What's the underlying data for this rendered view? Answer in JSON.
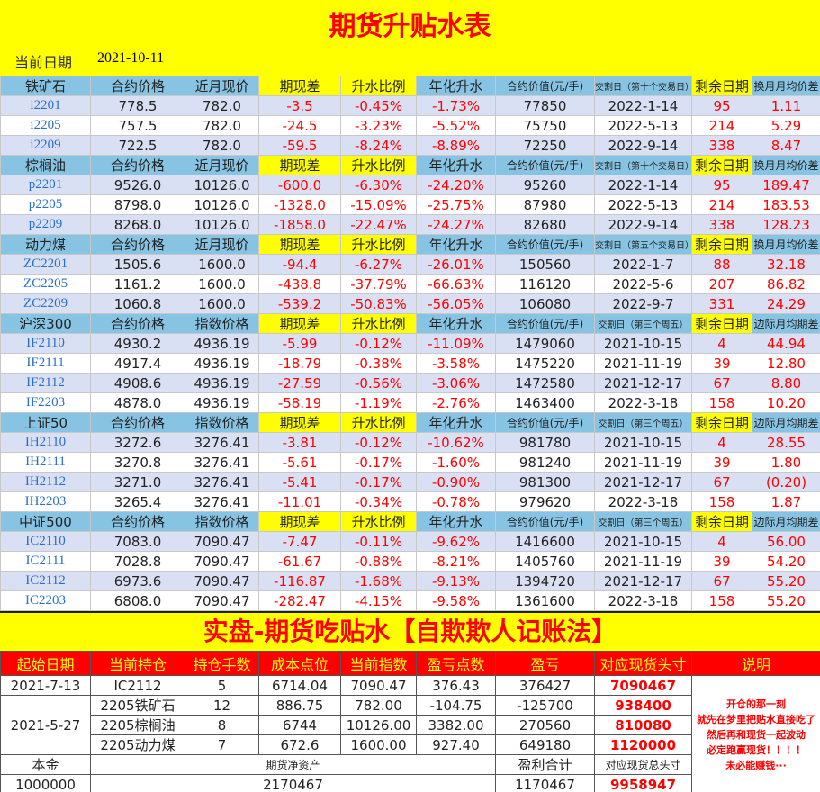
{
  "title": "期货升贴水表",
  "current_date_label": "当前日期",
  "current_date": "2021-10-11",
  "colors": {
    "header": "#87c4e4",
    "highlight": "#ffff00",
    "row_alt": "#dae0f3",
    "negative": "#ff0000",
    "code": "#2a6fc9"
  },
  "sections": [
    {
      "headers": [
        "铁矿石",
        "合约价格",
        "近月现价",
        "期现差",
        "升水比例",
        "年化升水",
        "合约价值(元/手)",
        "交割日（第十个交易日）",
        "剩余日期",
        "换月月均价差"
      ],
      "rows": [
        [
          "i2201",
          "778.5",
          "782.0",
          "-3.5",
          "-0.45%",
          "-1.73%",
          "77850",
          "2022-1-14",
          "95",
          "1.11"
        ],
        [
          "i2205",
          "757.5",
          "782.0",
          "-24.5",
          "-3.23%",
          "-5.52%",
          "75750",
          "2022-5-13",
          "214",
          "5.29"
        ],
        [
          "i2209",
          "722.5",
          "782.0",
          "-59.5",
          "-8.24%",
          "-8.89%",
          "72250",
          "2022-9-14",
          "338",
          "8.47"
        ]
      ]
    },
    {
      "headers": [
        "棕榈油",
        "合约价格",
        "近月现价",
        "期现差",
        "升水比例",
        "年化升水",
        "合约价值(元/手)",
        "交割日（第十个交易日）",
        "剩余日期",
        "换月月均价差"
      ],
      "rows": [
        [
          "p2201",
          "9526.0",
          "10126.0",
          "-600.0",
          "-6.30%",
          "-24.20%",
          "95260",
          "2022-1-14",
          "95",
          "189.47"
        ],
        [
          "p2205",
          "8798.0",
          "10126.0",
          "-1328.0",
          "-15.09%",
          "-25.75%",
          "87980",
          "2022-5-13",
          "214",
          "183.53"
        ],
        [
          "p2209",
          "8268.0",
          "10126.0",
          "-1858.0",
          "-22.47%",
          "-24.27%",
          "82680",
          "2022-9-14",
          "338",
          "128.23"
        ]
      ]
    },
    {
      "headers": [
        "动力煤",
        "合约价格",
        "近月现价",
        "期现差",
        "升水比例",
        "年化升水",
        "合约价值(元/手)",
        "交割日（第五个交易日）",
        "剩余日期",
        "换月月均价差"
      ],
      "rows": [
        [
          "ZC2201",
          "1505.6",
          "1600.0",
          "-94.4",
          "-6.27%",
          "-26.01%",
          "150560",
          "2022-1-7",
          "88",
          "32.18"
        ],
        [
          "ZC2205",
          "1161.2",
          "1600.0",
          "-438.8",
          "-37.79%",
          "-66.63%",
          "116120",
          "2022-5-6",
          "207",
          "86.82"
        ],
        [
          "ZC2209",
          "1060.8",
          "1600.0",
          "-539.2",
          "-50.83%",
          "-56.05%",
          "106080",
          "2022-9-7",
          "331",
          "24.29"
        ]
      ]
    },
    {
      "headers": [
        "沪深300",
        "合约价格",
        "指数价格",
        "期现差",
        "升水比例",
        "年化升水",
        "合约价值(元/手)",
        "交割日（第三个周五）",
        "剩余日期",
        "边际月均期差"
      ],
      "rows": [
        [
          "IF2110",
          "4930.2",
          "4936.19",
          "-5.99",
          "-0.12%",
          "-11.09%",
          "1479060",
          "2021-10-15",
          "4",
          "44.94"
        ],
        [
          "IF2111",
          "4917.4",
          "4936.19",
          "-18.79",
          "-0.38%",
          "-3.58%",
          "1475220",
          "2021-11-19",
          "39",
          "12.80"
        ],
        [
          "IF2112",
          "4908.6",
          "4936.19",
          "-27.59",
          "-0.56%",
          "-3.06%",
          "1472580",
          "2021-12-17",
          "67",
          "8.80"
        ],
        [
          "IF2203",
          "4878.0",
          "4936.19",
          "-58.19",
          "-1.19%",
          "-2.76%",
          "1463400",
          "2022-3-18",
          "158",
          "10.20"
        ]
      ]
    },
    {
      "headers": [
        "上证50",
        "合约价格",
        "指数价格",
        "期现差",
        "升水比例",
        "年化升水",
        "合约价值(元/手)",
        "交割日（第三个周五）",
        "剩余日期",
        "边际月均期差"
      ],
      "rows": [
        [
          "IH2110",
          "3272.6",
          "3276.41",
          "-3.81",
          "-0.12%",
          "-10.62%",
          "981780",
          "2021-10-15",
          "4",
          "28.55"
        ],
        [
          "IH2111",
          "3270.8",
          "3276.41",
          "-5.61",
          "-0.17%",
          "-1.60%",
          "981240",
          "2021-11-19",
          "39",
          "1.80"
        ],
        [
          "IH2112",
          "3271.0",
          "3276.41",
          "-5.41",
          "-0.17%",
          "-0.90%",
          "981300",
          "2021-12-17",
          "67",
          "(0.20)"
        ],
        [
          "IH2203",
          "3265.4",
          "3276.41",
          "-11.01",
          "-0.34%",
          "-0.78%",
          "979620",
          "2022-3-18",
          "158",
          "1.87"
        ]
      ]
    },
    {
      "headers": [
        "中证500",
        "合约价格",
        "指数价格",
        "期现差",
        "升水比例",
        "年化升水",
        "合约价值(元/手)",
        "交割日（第三个周五）",
        "剩余日期",
        "边际月均期差"
      ],
      "rows": [
        [
          "IC2110",
          "7083.0",
          "7090.47",
          "-7.47",
          "-0.11%",
          "-9.62%",
          "1416600",
          "2021-10-15",
          "4",
          "56.00"
        ],
        [
          "IC2111",
          "7028.8",
          "7090.47",
          "-61.67",
          "-0.88%",
          "-8.21%",
          "1405760",
          "2021-11-19",
          "39",
          "54.20"
        ],
        [
          "IC2112",
          "6973.6",
          "7090.47",
          "-116.87",
          "-1.68%",
          "-9.13%",
          "1394720",
          "2021-12-17",
          "67",
          "55.20"
        ],
        [
          "IC2203",
          "6808.0",
          "7090.47",
          "-282.47",
          "-4.15%",
          "-9.58%",
          "1361600",
          "2022-3-18",
          "158",
          "55.20"
        ]
      ]
    }
  ],
  "ledger": {
    "title": "实盘-期货吃贴水【自欺欺人记账法】",
    "headers": [
      "起始日期",
      "当前持仓",
      "持仓手数",
      "成本点位",
      "当前指数",
      "盈亏点数",
      "盈亏",
      "对应现货头寸",
      "说明"
    ],
    "group1": {
      "start_date": "2021-7-13",
      "row": [
        "IC2112",
        "5",
        "6714.04",
        "7090.47",
        "376.43",
        "376427",
        "7090467"
      ]
    },
    "group2": {
      "start_date": "2021-5-27",
      "rows": [
        [
          "2205铁矿石",
          "12",
          "886.75",
          "782.00",
          "-104.75",
          "-125700",
          "938400"
        ],
        [
          "2205棕榈油",
          "8",
          "6744",
          "10126.00",
          "3382.00",
          "270560",
          "810080"
        ],
        [
          "2205动力煤",
          "7",
          "672.6",
          "1600.00",
          "927.40",
          "649180",
          "1120000"
        ]
      ]
    },
    "note": [
      "开仓的那一刻",
      "就先在梦里把贴水直接吃了",
      "然后再和现货一起波动",
      "必定跑赢现货！！！！",
      "未必能赚钱···"
    ],
    "footer_labels": [
      "本金",
      "期货净资产",
      "盈利合计",
      "对应现货总头寸"
    ],
    "footer_values": [
      "1000000",
      "2170467",
      "1170467",
      "9958947"
    ]
  }
}
